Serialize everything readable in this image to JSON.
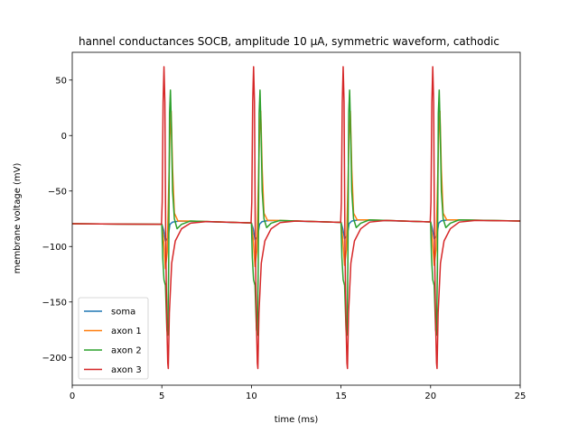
{
  "chart_data": {
    "type": "line",
    "title": "hannel conductances SOCB, amplitude 10 μA, symmetric waveform, cathodic",
    "xlabel": "time (ms)",
    "ylabel": "membrane voltage (mV)",
    "xlim": [
      0,
      25
    ],
    "ylim": [
      -225,
      75
    ],
    "xticks": [
      0,
      5,
      10,
      15,
      20,
      25
    ],
    "yticks": [
      -200,
      -150,
      -100,
      -50,
      0,
      50
    ],
    "grid": false,
    "legend_position": "lower-left",
    "series": [
      {
        "name": "soma",
        "color": "#1f77b4",
        "points": [
          [
            0,
            -79.5
          ],
          [
            5.0,
            -80.0
          ],
          [
            5.1,
            -85
          ],
          [
            5.2,
            -95
          ],
          [
            5.35,
            -92
          ],
          [
            5.45,
            -80
          ],
          [
            5.6,
            -78
          ],
          [
            6,
            -77
          ],
          [
            10.0,
            -78.8
          ],
          [
            10.1,
            -84
          ],
          [
            10.2,
            -94
          ],
          [
            10.35,
            -91
          ],
          [
            10.45,
            -80
          ],
          [
            10.6,
            -77.5
          ],
          [
            11,
            -76.5
          ],
          [
            15.0,
            -78.2
          ],
          [
            15.1,
            -84
          ],
          [
            15.2,
            -93
          ],
          [
            15.35,
            -90
          ],
          [
            15.45,
            -79.5
          ],
          [
            15.6,
            -77
          ],
          [
            16,
            -76
          ],
          [
            20.0,
            -77.8
          ],
          [
            20.1,
            -84
          ],
          [
            20.2,
            -93
          ],
          [
            20.35,
            -90
          ],
          [
            20.45,
            -79
          ],
          [
            20.6,
            -76.8
          ],
          [
            21,
            -76
          ],
          [
            25,
            -77
          ]
        ]
      },
      {
        "name": "axon 1",
        "color": "#ff7f0e",
        "points": [
          [
            0,
            -79.5
          ],
          [
            5.0,
            -80.0
          ],
          [
            5.1,
            -95
          ],
          [
            5.2,
            -120
          ],
          [
            5.3,
            -105
          ],
          [
            5.45,
            0
          ],
          [
            5.52,
            22
          ],
          [
            5.6,
            -30
          ],
          [
            5.7,
            -70
          ],
          [
            5.9,
            -77
          ],
          [
            6.5,
            -77
          ],
          [
            10.0,
            -78.8
          ],
          [
            10.1,
            -94
          ],
          [
            10.2,
            -118
          ],
          [
            10.3,
            -104
          ],
          [
            10.45,
            0
          ],
          [
            10.52,
            22
          ],
          [
            10.6,
            -30
          ],
          [
            10.7,
            -70
          ],
          [
            10.9,
            -76.5
          ],
          [
            11.5,
            -76.5
          ],
          [
            15.0,
            -78.2
          ],
          [
            15.1,
            -94
          ],
          [
            15.2,
            -117
          ],
          [
            15.3,
            -103
          ],
          [
            15.45,
            0
          ],
          [
            15.52,
            22
          ],
          [
            15.6,
            -30
          ],
          [
            15.7,
            -70
          ],
          [
            15.9,
            -76
          ],
          [
            16.5,
            -76
          ],
          [
            20.0,
            -77.8
          ],
          [
            20.1,
            -94
          ],
          [
            20.2,
            -117
          ],
          [
            20.3,
            -103
          ],
          [
            20.45,
            0
          ],
          [
            20.52,
            22
          ],
          [
            20.6,
            -30
          ],
          [
            20.7,
            -70
          ],
          [
            20.9,
            -76
          ],
          [
            21.5,
            -76
          ],
          [
            25,
            -77
          ]
        ]
      },
      {
        "name": "axon 2",
        "color": "#2ca02c",
        "points": [
          [
            0,
            -79.5
          ],
          [
            5.0,
            -80.0
          ],
          [
            5.05,
            -110
          ],
          [
            5.12,
            -130
          ],
          [
            5.2,
            -135
          ],
          [
            5.28,
            -175
          ],
          [
            5.33,
            -180
          ],
          [
            5.38,
            -120
          ],
          [
            5.43,
            20
          ],
          [
            5.48,
            41
          ],
          [
            5.53,
            10
          ],
          [
            5.6,
            -50
          ],
          [
            5.7,
            -75
          ],
          [
            5.85,
            -84
          ],
          [
            6.1,
            -80
          ],
          [
            6.6,
            -77
          ],
          [
            10.0,
            -78.8
          ],
          [
            10.05,
            -110
          ],
          [
            10.12,
            -130
          ],
          [
            10.2,
            -135
          ],
          [
            10.28,
            -175
          ],
          [
            10.33,
            -180
          ],
          [
            10.38,
            -120
          ],
          [
            10.43,
            20
          ],
          [
            10.48,
            41
          ],
          [
            10.53,
            10
          ],
          [
            10.6,
            -50
          ],
          [
            10.7,
            -75
          ],
          [
            10.85,
            -83
          ],
          [
            11.1,
            -79
          ],
          [
            11.6,
            -76.5
          ],
          [
            15.0,
            -78.2
          ],
          [
            15.05,
            -110
          ],
          [
            15.12,
            -130
          ],
          [
            15.2,
            -135
          ],
          [
            15.28,
            -175
          ],
          [
            15.33,
            -180
          ],
          [
            15.38,
            -120
          ],
          [
            15.43,
            20
          ],
          [
            15.48,
            41
          ],
          [
            15.53,
            10
          ],
          [
            15.6,
            -50
          ],
          [
            15.7,
            -75
          ],
          [
            15.85,
            -83
          ],
          [
            16.1,
            -79
          ],
          [
            16.6,
            -76
          ],
          [
            20.0,
            -77.8
          ],
          [
            20.05,
            -110
          ],
          [
            20.12,
            -130
          ],
          [
            20.2,
            -135
          ],
          [
            20.28,
            -175
          ],
          [
            20.33,
            -180
          ],
          [
            20.38,
            -120
          ],
          [
            20.43,
            20
          ],
          [
            20.48,
            41
          ],
          [
            20.53,
            10
          ],
          [
            20.6,
            -50
          ],
          [
            20.7,
            -75
          ],
          [
            20.85,
            -83
          ],
          [
            21.1,
            -79
          ],
          [
            21.6,
            -76
          ],
          [
            25,
            -77
          ]
        ]
      },
      {
        "name": "axon 3",
        "color": "#d62728",
        "points": [
          [
            0,
            -79.5
          ],
          [
            4.98,
            -80.0
          ],
          [
            5.02,
            -60
          ],
          [
            5.07,
            30
          ],
          [
            5.12,
            62
          ],
          [
            5.17,
            30
          ],
          [
            5.22,
            -100
          ],
          [
            5.28,
            -170
          ],
          [
            5.33,
            -205
          ],
          [
            5.36,
            -210
          ],
          [
            5.42,
            -160
          ],
          [
            5.55,
            -115
          ],
          [
            5.75,
            -95
          ],
          [
            6.1,
            -84
          ],
          [
            6.6,
            -79
          ],
          [
            7.5,
            -77.5
          ],
          [
            9.98,
            -78.8
          ],
          [
            10.02,
            -60
          ],
          [
            10.07,
            30
          ],
          [
            10.12,
            62
          ],
          [
            10.17,
            30
          ],
          [
            10.22,
            -100
          ],
          [
            10.28,
            -170
          ],
          [
            10.33,
            -205
          ],
          [
            10.36,
            -210
          ],
          [
            10.42,
            -160
          ],
          [
            10.55,
            -115
          ],
          [
            10.75,
            -95
          ],
          [
            11.1,
            -84
          ],
          [
            11.6,
            -78.5
          ],
          [
            12.5,
            -77
          ],
          [
            14.98,
            -78.2
          ],
          [
            15.02,
            -60
          ],
          [
            15.07,
            30
          ],
          [
            15.12,
            62
          ],
          [
            15.17,
            30
          ],
          [
            15.22,
            -100
          ],
          [
            15.28,
            -170
          ],
          [
            15.33,
            -205
          ],
          [
            15.36,
            -210
          ],
          [
            15.42,
            -160
          ],
          [
            15.55,
            -115
          ],
          [
            15.75,
            -95
          ],
          [
            16.1,
            -84
          ],
          [
            16.6,
            -78
          ],
          [
            17.5,
            -76.5
          ],
          [
            19.98,
            -77.8
          ],
          [
            20.02,
            -60
          ],
          [
            20.07,
            30
          ],
          [
            20.12,
            62
          ],
          [
            20.17,
            30
          ],
          [
            20.22,
            -100
          ],
          [
            20.28,
            -170
          ],
          [
            20.33,
            -205
          ],
          [
            20.36,
            -210
          ],
          [
            20.42,
            -160
          ],
          [
            20.55,
            -115
          ],
          [
            20.75,
            -95
          ],
          [
            21.1,
            -84
          ],
          [
            21.6,
            -78
          ],
          [
            22.5,
            -76.5
          ],
          [
            25,
            -77
          ]
        ]
      }
    ]
  }
}
